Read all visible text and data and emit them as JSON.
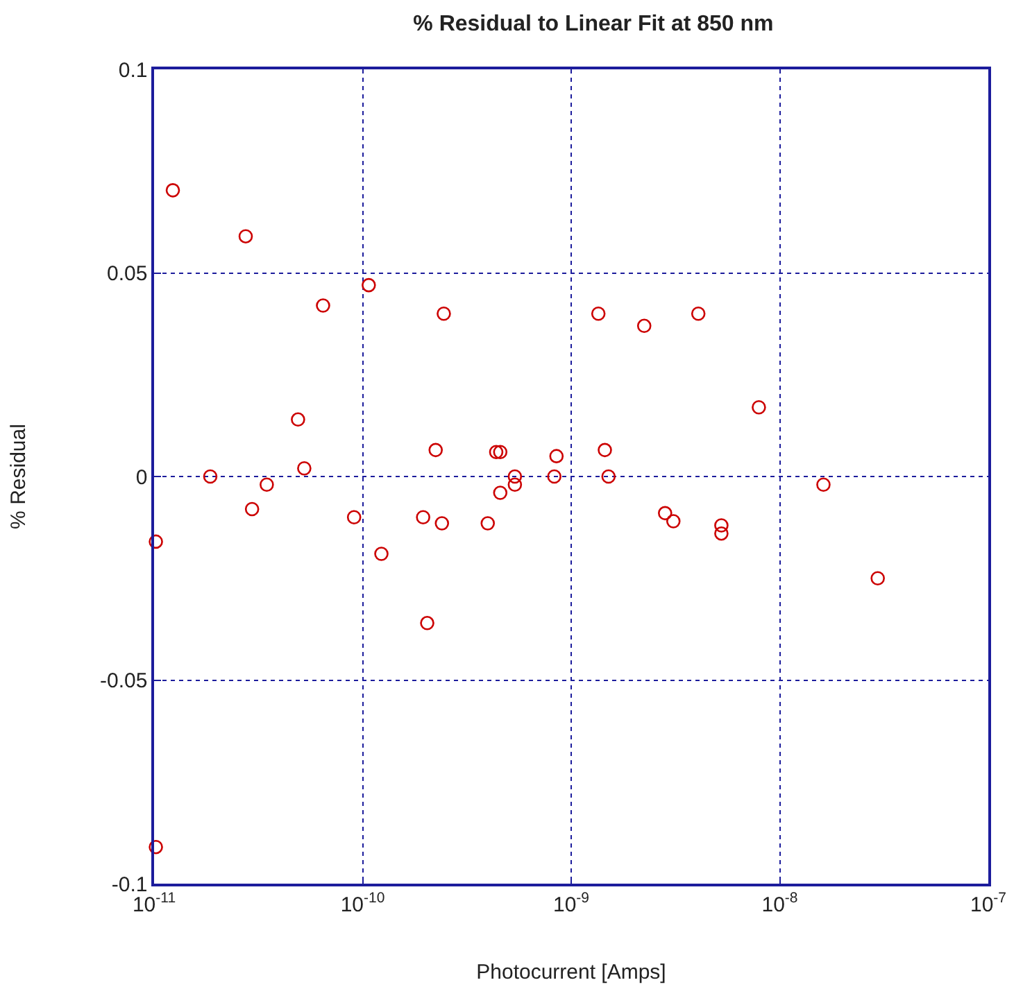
{
  "chart_data": {
    "type": "scatter",
    "title": "% Residual to Linear Fit at 850 nm",
    "xlabel": "Photocurrent [Amps]",
    "ylabel": "% Residual",
    "log": "x",
    "grid": true,
    "marker": "circle",
    "xlim": [
      1e-11,
      1e-07
    ],
    "xticks": [
      {
        "value": 1e-11,
        "label": "10$^{-11}$"
      },
      {
        "value": 1e-10,
        "label": "10$^{-10}$"
      },
      {
        "value": 1e-09,
        "label": "10$^{-9}$"
      },
      {
        "value": 1e-08,
        "label": "10$^{-8}$"
      },
      {
        "value": 1e-07,
        "label": "10$^{-7}$"
      }
    ],
    "ylim": [
      -0.1,
      0.1
    ],
    "yticks": [
      -0.1,
      -0.05,
      0,
      0.05,
      0.1
    ],
    "series": [
      {
        "color": "#cc0000",
        "x": [
          1.23e-11,
          2.75e-11,
          6.46e-11,
          1.07e-10,
          2.45e-10,
          4.9e-11,
          1.86e-11,
          5.25e-11,
          3.47e-11,
          2.95e-11,
          1.02e-11,
          1.02e-11,
          9.1e-11,
          1.23e-10,
          2.04e-10,
          1.95e-10,
          2.24e-10,
          2.4e-10,
          3.98e-10,
          4.37e-10,
          4.57e-10,
          4.57e-10,
          5.37e-10,
          5.37e-10,
          8.5e-10,
          8.3e-10,
          1.35e-09,
          2.24e-09,
          4.07e-09,
          1.45e-09,
          1.51e-09,
          2.82e-09,
          3.09e-09,
          5.25e-09,
          5.25e-09,
          7.94e-09,
          1.62e-08,
          2.95e-08
        ],
        "values": [
          0.0703,
          0.059,
          0.042,
          0.047,
          0.04,
          0.014,
          0.0,
          0.002,
          -0.002,
          -0.008,
          -0.016,
          -0.091,
          -0.01,
          -0.019,
          -0.036,
          -0.01,
          0.0065,
          -0.0115,
          -0.0115,
          0.006,
          0.006,
          -0.004,
          0.0,
          -0.002,
          0.005,
          0.0,
          0.04,
          0.037,
          0.04,
          0.0065,
          0.0,
          -0.009,
          -0.011,
          -0.012,
          -0.014,
          0.017,
          -0.002,
          -0.025
        ]
      }
    ]
  }
}
